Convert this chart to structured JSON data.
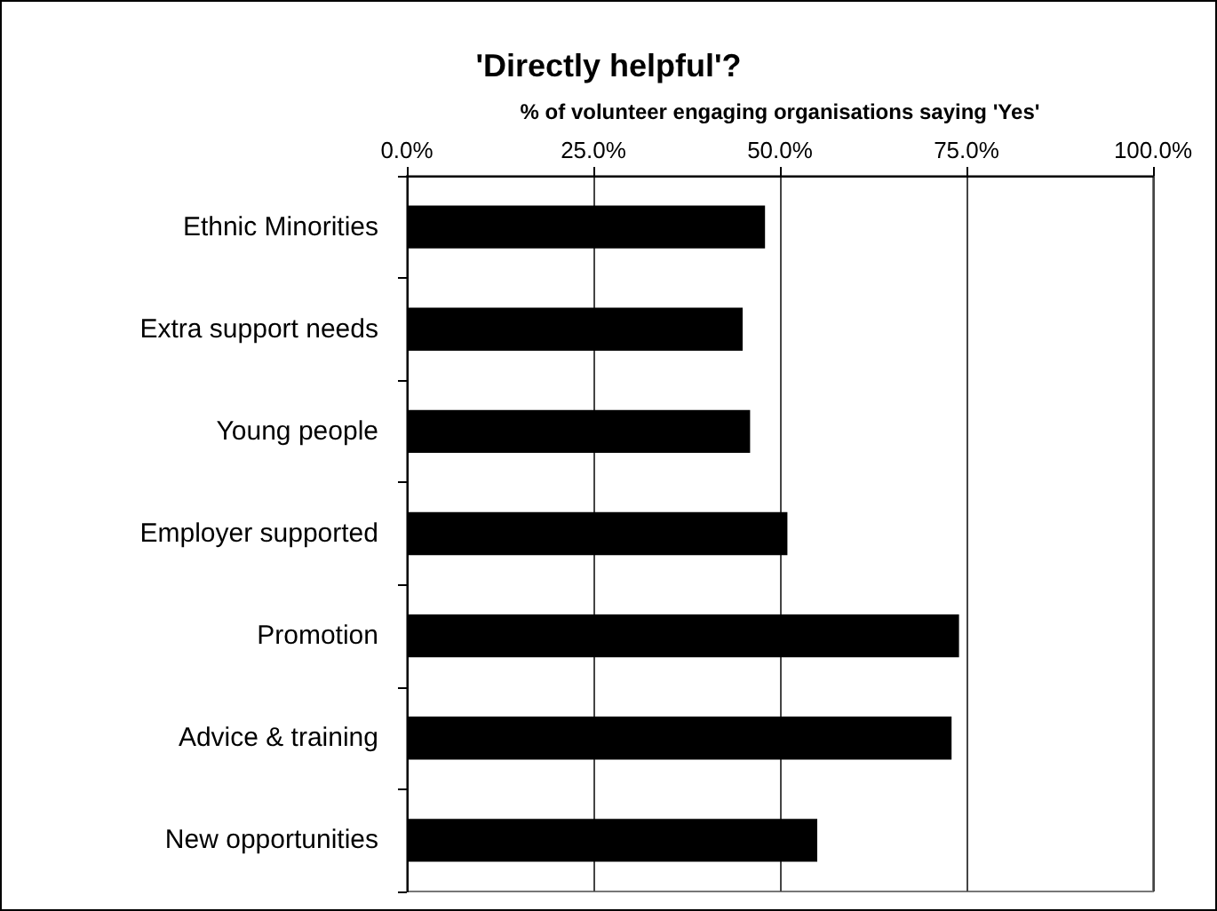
{
  "chart_data": {
    "type": "bar",
    "orientation": "horizontal",
    "title": "'Directly helpful'?",
    "xlabel": "% of volunteer engaging organisations saying 'Yes'",
    "categories": [
      "Ethnic Minorities",
      "Extra support needs",
      "Young people",
      "Employer supported",
      "Promotion",
      "Advice & training",
      "New opportunities"
    ],
    "values": [
      48,
      45,
      46,
      51,
      74,
      73,
      55
    ],
    "color": "#000000",
    "xlim": [
      0,
      100
    ],
    "xticks": [
      {
        "value": 0,
        "label": "0.0%"
      },
      {
        "value": 25,
        "label": "25.0%"
      },
      {
        "value": 50,
        "label": "50.0%"
      },
      {
        "value": 75,
        "label": "75.0%"
      },
      {
        "value": 100,
        "label": "100.0%"
      }
    ],
    "grid": "x"
  }
}
